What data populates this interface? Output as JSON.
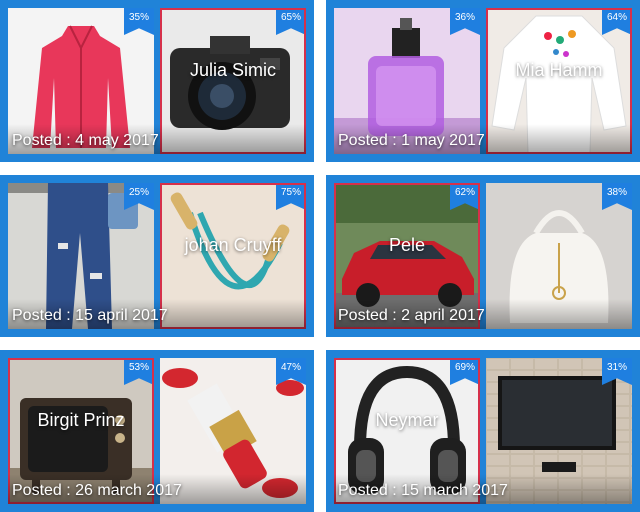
{
  "cards": [
    {
      "name": "Julia Simic",
      "posted": "Posted : 4 may 2017",
      "left": {
        "percent": "35%",
        "icon": "jacket-image"
      },
      "right": {
        "percent": "65%",
        "icon": "camera-image"
      }
    },
    {
      "name": "Mia Hamm",
      "posted": "Posted : 1 may 2017",
      "left": {
        "percent": "36%",
        "icon": "perfume-image"
      },
      "right": {
        "percent": "64%",
        "icon": "blouse-image"
      }
    },
    {
      "name": "johan Cruyff",
      "posted": "Posted : 15 april 2017",
      "left": {
        "percent": "25%",
        "icon": "jeans-image"
      },
      "right": {
        "percent": "75%",
        "icon": "jump-rope-image"
      }
    },
    {
      "name": "Pele",
      "posted": "Posted : 2 april 2017",
      "left": {
        "percent": "62%",
        "icon": "red-car-image"
      },
      "right": {
        "percent": "38%",
        "icon": "handbag-image"
      }
    },
    {
      "name": "Birgit Prinz",
      "posted": "Posted : 26 march 2017",
      "left": {
        "percent": "53%",
        "icon": "tv-image"
      },
      "right": {
        "percent": "47%",
        "icon": "lipstick-image"
      }
    },
    {
      "name": "Neymar",
      "posted": "Posted : 15 march 2017",
      "left": {
        "percent": "69%",
        "icon": "headphones-image"
      },
      "right": {
        "percent": "31%",
        "icon": "wall-tv-image"
      }
    }
  ],
  "colors": {
    "card_bg": "#2083d8",
    "badge": "#1f7fe0",
    "selected_border": "#d6304a"
  }
}
